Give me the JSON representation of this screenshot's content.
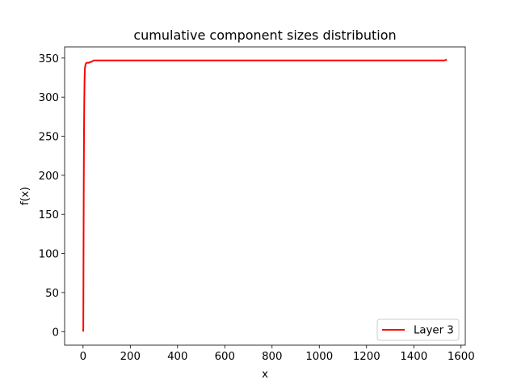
{
  "chart_data": {
    "type": "line",
    "title": "cumulative component sizes distribution",
    "xlabel": "x",
    "ylabel": "f(x)",
    "xlim": [
      -78,
      1618
    ],
    "ylim": [
      -17.3,
      364.3
    ],
    "xticks": [
      0,
      200,
      400,
      600,
      800,
      1000,
      1200,
      1400,
      1600
    ],
    "yticks": [
      0,
      50,
      100,
      150,
      200,
      250,
      300,
      350
    ],
    "grid": false,
    "legend_position": "lower right",
    "series": [
      {
        "name": "Layer 3",
        "color": "#ff0000",
        "x": [
          1,
          2,
          3,
          4,
          5,
          6,
          7,
          8,
          10,
          12,
          15,
          20,
          25,
          30,
          35,
          40,
          45,
          50,
          100,
          500,
          1000,
          1500,
          1530,
          1540
        ],
        "y": [
          0,
          100,
          190,
          250,
          290,
          315,
          330,
          337,
          341,
          343,
          344,
          344,
          344,
          345,
          345,
          346,
          347,
          347,
          347,
          347,
          347,
          347,
          347,
          348
        ]
      }
    ]
  }
}
